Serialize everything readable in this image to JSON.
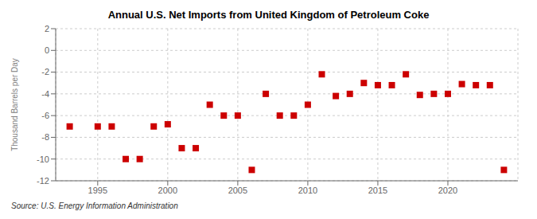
{
  "chart_data": {
    "type": "scatter",
    "title": "Annual U.S. Net Imports from United Kingdom of Petroleum Coke",
    "ylabel": "Thousand Barrels per Day",
    "annotations": [
      "Source: U.S. Energy Information Administration"
    ],
    "x": [
      1993,
      1995,
      1996,
      1997,
      1998,
      1999,
      2000,
      2001,
      2002,
      2003,
      2004,
      2005,
      2006,
      2007,
      2008,
      2009,
      2010,
      2011,
      2012,
      2013,
      2014,
      2015,
      2016,
      2017,
      2018,
      2019,
      2020,
      2021,
      2022,
      2023,
      2024
    ],
    "values": [
      -7.0,
      -7.0,
      -7.0,
      -10.0,
      -10.0,
      -7.0,
      -6.8,
      -9.0,
      -9.0,
      -5.0,
      -6.0,
      -6.0,
      -11.0,
      -4.0,
      -6.0,
      -6.0,
      -5.0,
      -2.2,
      -4.2,
      -4.0,
      -3.0,
      -3.2,
      -3.2,
      -2.2,
      -4.1,
      -4.0,
      -4.0,
      -3.1,
      -3.2,
      -3.2,
      -11.0
    ],
    "color": "#cc0000",
    "marker": "square",
    "xlim": [
      1992,
      2025
    ],
    "ylim": [
      -12,
      2
    ],
    "xticks": [
      1995,
      2000,
      2005,
      2010,
      2015,
      2020
    ],
    "yticks": [
      2,
      0,
      -2,
      -4,
      -6,
      -8,
      -10,
      -12
    ],
    "grid": true
  }
}
